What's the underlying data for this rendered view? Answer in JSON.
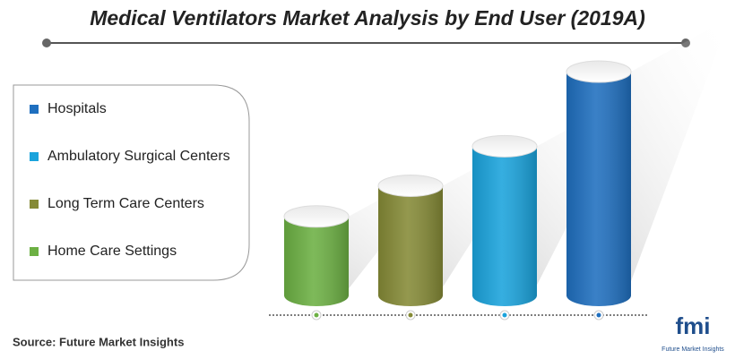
{
  "chart_data": {
    "type": "cylinder",
    "title": "Medical Ventilators Market Analysis by End User (2019A)",
    "series": [
      {
        "name": "Hospitals",
        "color": "#1f6fbf",
        "values": [
          255
        ]
      },
      {
        "name": "Ambulatory Surgical Centers",
        "color": "#1aa3dc",
        "values": [
          170
        ]
      },
      {
        "name": "Long Term Care Centers",
        "color": "#858a36",
        "values": [
          125
        ]
      },
      {
        "name": "Home Care Settings",
        "color": "#6cb043",
        "values": [
          90
        ]
      }
    ],
    "source": "Source: Future Market Insights"
  },
  "logo": {
    "name": "fmi",
    "tagline": "Future Market Insights"
  }
}
